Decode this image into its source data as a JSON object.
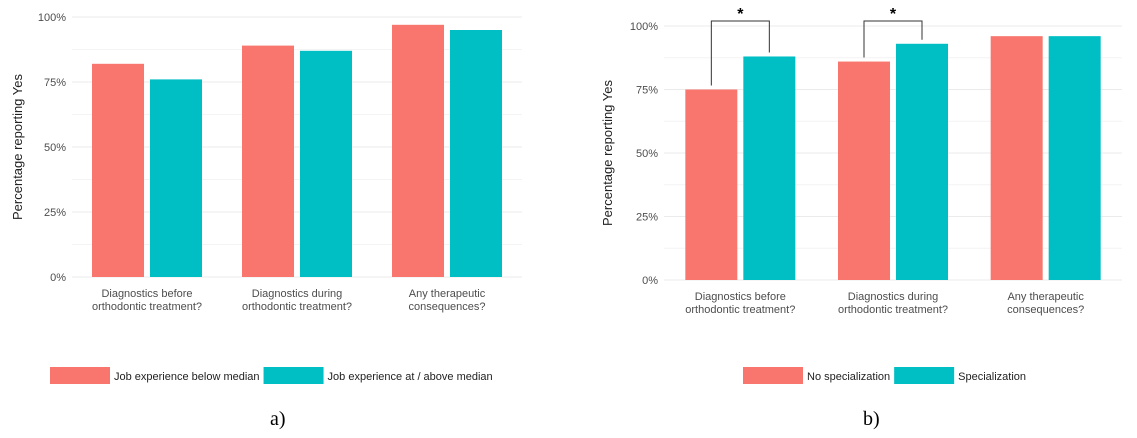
{
  "chart_data": [
    {
      "type": "bar",
      "panel_label": "a)",
      "categories": [
        [
          "Diagnostics before",
          "orthodontic treatment?"
        ],
        [
          "Diagnostics during",
          "orthodontic treatment?"
        ],
        [
          "Any therapeutic",
          "consequences?"
        ]
      ],
      "series": [
        {
          "name": "Job experience below median",
          "values": [
            82,
            89,
            97
          ],
          "color": "#F8766D"
        },
        {
          "name": "Job experience at / above median",
          "values": [
            76,
            87,
            95
          ],
          "color": "#00BFC4"
        }
      ],
      "ylabel": "Percentage reporting Yes",
      "ylim": [
        0,
        100
      ],
      "yticks": [
        "0%",
        "25%",
        "50%",
        "75%",
        "100%"
      ],
      "grid": true,
      "legend_position": "bottom",
      "significance": []
    },
    {
      "type": "bar",
      "panel_label": "b)",
      "categories": [
        [
          "Diagnostics before",
          "orthodontic treatment?"
        ],
        [
          "Diagnostics during",
          "orthodontic treatment?"
        ],
        [
          "Any therapeutic",
          "consequences?"
        ]
      ],
      "series": [
        {
          "name": "No specialization",
          "values": [
            75,
            86,
            96
          ],
          "color": "#F8766D"
        },
        {
          "name": "Specialization",
          "values": [
            88,
            93,
            96
          ],
          "color": "#00BFC4"
        }
      ],
      "ylabel": "Percentage reporting Yes",
      "ylim": [
        0,
        100
      ],
      "yticks": [
        "0%",
        "25%",
        "50%",
        "75%",
        "100%"
      ],
      "grid": true,
      "legend_position": "bottom",
      "significance": [
        {
          "category_index": 0,
          "label": "*"
        },
        {
          "category_index": 1,
          "label": "*"
        }
      ]
    }
  ]
}
